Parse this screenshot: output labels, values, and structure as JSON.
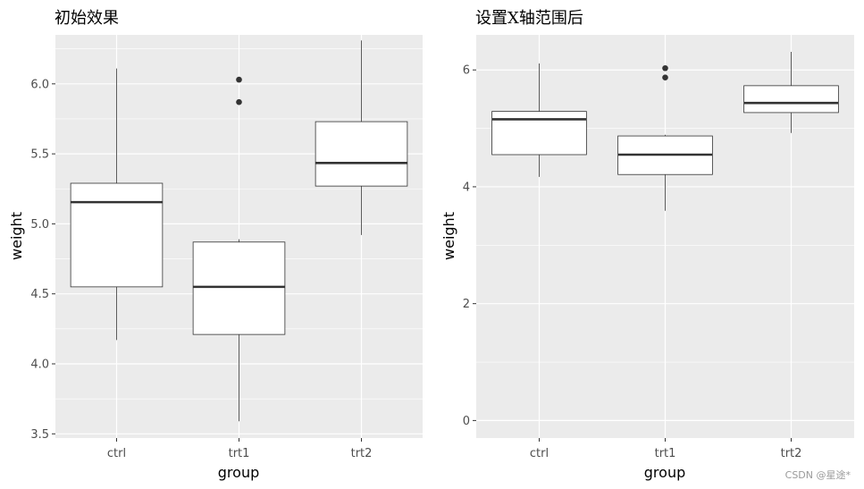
{
  "colors": {
    "panel": "#ebebeb",
    "grid": "#ffffff",
    "box_fill": "#ffffff",
    "box_line": "#333333",
    "outlier": "#333333"
  },
  "watermark": "CSDN @星途*",
  "chart_data": [
    {
      "type": "boxplot",
      "title": "初始效果",
      "xlabel": "group",
      "ylabel": "weight",
      "categories": [
        "ctrl",
        "trt1",
        "trt2"
      ],
      "ylim": [
        3.47,
        6.35
      ],
      "yticks": [
        3.5,
        4.0,
        4.5,
        5.0,
        5.5,
        6.0
      ],
      "ytick_labels": [
        "3.5",
        "4.0",
        "4.5",
        "5.0",
        "5.5",
        "6.0"
      ],
      "grid": true,
      "boxes": [
        {
          "category": "ctrl",
          "min": 4.17,
          "q1": 4.55,
          "median": 5.155,
          "q3": 5.29,
          "max": 6.11,
          "outliers": []
        },
        {
          "category": "trt1",
          "min": 3.59,
          "q1": 4.21,
          "median": 4.55,
          "q3": 4.87,
          "max": 4.89,
          "outliers": [
            5.87,
            6.03
          ]
        },
        {
          "category": "trt2",
          "min": 4.92,
          "q1": 5.27,
          "median": 5.435,
          "q3": 5.73,
          "max": 6.31,
          "outliers": []
        }
      ]
    },
    {
      "type": "boxplot",
      "title": "设置X轴范围后",
      "xlabel": "group",
      "ylabel": "weight",
      "categories": [
        "ctrl",
        "trt1",
        "trt2"
      ],
      "ylim": [
        -0.3,
        6.6
      ],
      "yticks": [
        0,
        2,
        4,
        6
      ],
      "ytick_labels": [
        "0",
        "2",
        "4",
        "6"
      ],
      "grid": true,
      "boxes": [
        {
          "category": "ctrl",
          "min": 4.17,
          "q1": 4.55,
          "median": 5.155,
          "q3": 5.29,
          "max": 6.11,
          "outliers": []
        },
        {
          "category": "trt1",
          "min": 3.59,
          "q1": 4.21,
          "median": 4.55,
          "q3": 4.87,
          "max": 4.89,
          "outliers": [
            5.87,
            6.03
          ]
        },
        {
          "category": "trt2",
          "min": 4.92,
          "q1": 5.27,
          "median": 5.435,
          "q3": 5.73,
          "max": 6.31,
          "outliers": []
        }
      ]
    }
  ]
}
